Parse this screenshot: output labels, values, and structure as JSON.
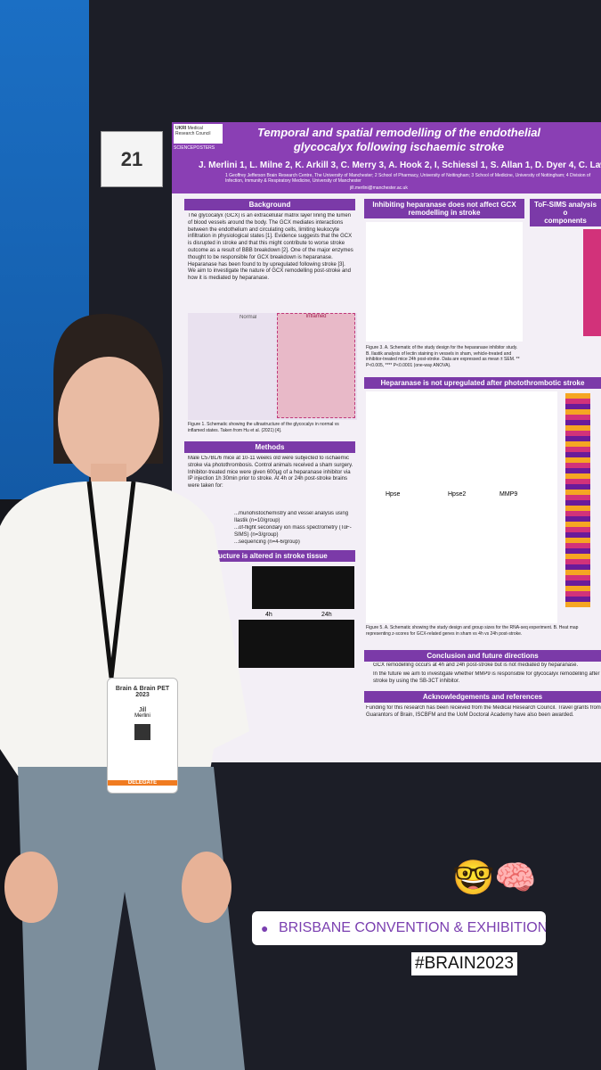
{
  "poster_number": "21",
  "poster": {
    "logos": {
      "ukri": "UKRI",
      "council": "Medical Research Council",
      "platform": "SCIENCEPOSTERS"
    },
    "title": "Temporal and spatial remodelling of the endothelial glycocalyx following ischaemic stroke",
    "authors": "J. Merlini 1, L. Milne 2, K. Arkill 3, C. Merry 3, A. Hook 2, I, Schiessl 1, S. Allan 1, D. Dyer 4, C. Lawre",
    "affiliations": "1 Geoffrey Jefferson Brain Research Centre, The University of Manchester; 2 School of Pharmacy, University of Nottingham; 3 School of Medicine, University of Nottingham; 4 Division of Infection, Immunity & Respiratory Medicine, University of Manchester",
    "email": "jill.merlini@manchester.ac.uk",
    "background": {
      "heading": "Background",
      "body": "The glycocalyx (GCX) is an extracellular matrix layer lining the lumen of blood vessels around the body. The GCX mediates interactions between the endothelium and circulating cells, limiting leukocyte infiltration in physiological states [1]. Evidence suggests that the GCX is disrupted in stroke and that this might contribute to worse stroke outcome as a result of BBB breakdown [2]. One of the major enzymes thought to be responsible for GCX breakdown is heparanase. Heparanase has been found to by upregulated following stroke [3]. We aim to investigate the nature of GCX remodelling post-stroke and how it is mediated by heparanase.",
      "figure_labels": [
        "Normal",
        "Inflamed"
      ],
      "caption": "Figure 1. Schematic showing the ultrastructure of the glycocalyx in normal vs inflamed states. Taken from Hu et al. (2021) [4]."
    },
    "methods": {
      "heading": "Methods",
      "body": "Male C57BL/6 mice at 10-11 weeks old were subjected to ischaemic stroke via photothrombosis. Control animals received a sham surgery. Inhibitor-treated mice were given 600µg of a heparanase inhibitor via IP injection 1h 30min prior to stroke. At 4h or 24h post-stroke brains were taken for:",
      "items": [
        "...munohistochemistry and vessel analysis using Ilastik (n=10/group)",
        "...of-flight secondary ion mass spectrometry (ToF-SIMS) (n=3/group)",
        "...sequencing (n=4-6/group)"
      ]
    },
    "structure": {
      "heading": "...ucture is altered in stroke tissue",
      "labels": [
        "4h",
        "24h"
      ]
    },
    "inhibiting": {
      "heading": "Inhibiting heparanase does not affect GCX remodelling in stroke",
      "caption": "Figure 3. A. Schematic of the study design for the heparanase inhibitor study. B. Ilastik analysis of lectin staining in vessels in sham, vehicle-treated and inhibitor-treated mice 24h post-stroke. Data are expressed as mean ± SEM. ** P<0.005, **** P<0.0001 (one-way ANOVA)."
    },
    "tofsims": {
      "heading": "ToF-SIMS analysis o",
      "sub": "components"
    },
    "heparanase": {
      "heading": "Heparanase is not upregulated after photothrombotic stroke",
      "panels": [
        "Hpse",
        "Hpse2",
        "MMP9"
      ],
      "caption": "Figure 5. A. Schematic showing the study design and group sizes for the RNA-seq experiment. B. Heat map representing z-scores for GCX-related genes in sham vs 4h vs 24h post-stroke."
    },
    "conclusion": {
      "heading": "Conclusion and future directions",
      "items": [
        "GCX remodelling occurs at 4h and 24h post-stroke but is not mediated by heparanase.",
        "In the future we aim to investigate whether MMP9 is responsible for glycocalyx remodelling after stroke by using the SB-3CT inhibitor."
      ]
    },
    "acknowledgements": {
      "heading": "Acknowledgements and references",
      "body": "Funding for this research has been received from the Medical Research Council. Travel grants from Guarantors of Brain, ISCBFM and the UoM Doctoral Academy have also been awarded."
    }
  },
  "badge": {
    "event": "Brain & Brain PET 2023",
    "first_name": "Jill",
    "last_name": "Merlini",
    "role": "DELEGATE"
  },
  "overlays": {
    "emoji": "🤓🧠",
    "location": "BRISBANE CONVENTION & EXHIBITION C...",
    "hashtag": "#BRAIN2023"
  }
}
